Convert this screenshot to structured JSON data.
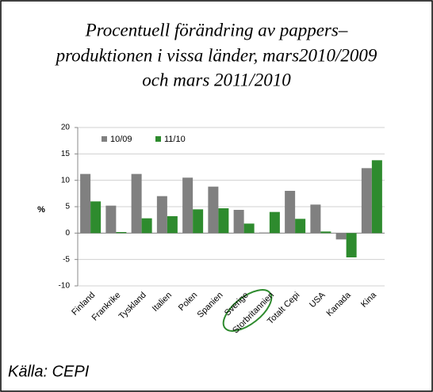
{
  "chart_data": {
    "type": "bar",
    "title": [
      "Procentuell förändring av pappers–",
      "produktionen i vissa länder, mars2010/2009",
      "och mars 2011/2010"
    ],
    "ylabel": "%",
    "source": "Källa: CEPI",
    "categories": [
      "Finland",
      "Frankrike",
      "Tyskland",
      "Italien",
      "Polen",
      "Spanien",
      "Sverige",
      "Storbritannien",
      "Totalt Cepi",
      "USA",
      "Kanada",
      "Kina"
    ],
    "series": [
      {
        "name": "10/09",
        "color": "#808080",
        "values": [
          11.2,
          5.2,
          11.2,
          7.0,
          10.5,
          8.8,
          4.4,
          0.1,
          8.0,
          5.4,
          -1.2,
          12.3
        ]
      },
      {
        "name": "11/10",
        "color": "#2e8b2e",
        "values": [
          6.0,
          0.2,
          2.8,
          3.2,
          4.5,
          4.7,
          1.8,
          4.0,
          2.7,
          0.3,
          -4.6,
          13.8
        ]
      }
    ],
    "ylim": [
      -10,
      20
    ],
    "yticks": [
      -10,
      -5,
      0,
      5,
      10,
      15,
      20
    ],
    "grid": true,
    "legend": "top-left"
  }
}
